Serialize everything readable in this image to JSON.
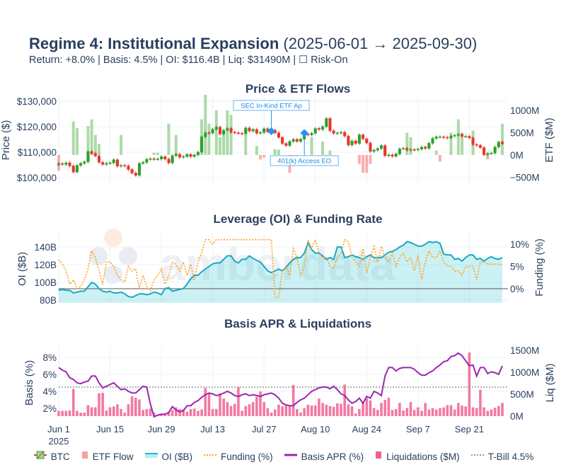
{
  "header": {
    "title_bold": "Regime 4: Institutional Expansion",
    "title_range": "(2025-06-01 → 2025-09-30)",
    "date_start": "2025-06-01",
    "date_end": "2025-09-30",
    "subtitle": "Return: +8.0% | Basis: 4.5% | OI: $116.4B | Liq: $31490M | ☐ Risk-On"
  },
  "watermark": "amberdata",
  "x_axis": {
    "ticks": [
      "Jun 1",
      "Jun 15",
      "Jun 29",
      "Jul 13",
      "Jul 27",
      "Aug 10",
      "Aug 24",
      "Sep 7",
      "Sep 21"
    ],
    "year_label": "2025"
  },
  "legend": [
    {
      "label": "BTC",
      "color": "#2ca02c"
    },
    {
      "label": "ETF Flow",
      "color": "#f8a0a0"
    },
    {
      "label": "OI ($B)",
      "color": "#17becf"
    },
    {
      "label": "Funding (%)",
      "color": "#ff9f1c"
    },
    {
      "label": "Basis APR (%)",
      "color": "#9c27b0"
    },
    {
      "label": "Liquidations ($M)",
      "color": "#f06292"
    },
    {
      "label": "T-Bill 4.5%",
      "color": "#999999"
    }
  ],
  "chart_data": [
    {
      "type": "candlestick+bar",
      "title": "Price & ETF Flows",
      "ylabel": "Price ($)",
      "y2label": "ETF ($M)",
      "yticks": [
        "$100,000",
        "$110,000",
        "$120,000",
        "$130,000"
      ],
      "y2ticks": [
        "−500M",
        "0M",
        "500M",
        "1000M"
      ],
      "ylim": [
        98000,
        132000
      ],
      "y2lim": [
        -650,
        1350
      ],
      "colors": {
        "up": "#2ca02c",
        "down": "#e8372c",
        "etf_pos": "#9fd49a",
        "etf_neg": "#f8a0a0"
      },
      "btc_close_k": [
        105.5,
        105.2,
        105.8,
        104.6,
        102.2,
        104.8,
        105.6,
        106.2,
        110.2,
        109.5,
        108.5,
        106.0,
        105.2,
        105.6,
        105.8,
        107.0,
        104.5,
        104.8,
        104.6,
        103.2,
        101.8,
        100.9,
        105.6,
        106.0,
        107.2,
        107.4,
        107.2,
        107.3,
        108.2,
        107.3,
        105.8,
        108.6,
        109.2,
        108.0,
        108.3,
        109.1,
        108.3,
        108.9,
        110.0,
        116.0,
        117.6,
        117.5,
        119.0,
        119.8,
        117.1,
        118.6,
        119.3,
        117.8,
        117.6,
        117.4,
        117.3,
        119.5,
        118.3,
        118.9,
        117.4,
        117.7,
        119.2,
        118.0,
        118.6,
        117.6,
        115.8,
        113.4,
        112.6,
        114.2,
        115.0,
        114.2,
        115.1,
        117.0,
        116.8,
        117.4,
        119.3,
        118.9,
        120.0,
        123.2,
        118.4,
        117.4,
        117.5,
        117.8,
        116.3,
        112.8,
        114.4,
        113.4,
        116.8,
        115.2,
        113.6,
        110.3,
        110.8,
        111.4,
        112.6,
        108.6,
        108.9,
        108.4,
        109.3,
        111.3,
        111.5,
        110.8,
        111.0,
        110.9,
        111.2,
        112.0,
        111.5,
        113.5,
        115.4,
        116.0,
        116.0,
        115.8,
        115.6,
        116.3,
        116.6,
        117.0,
        116.2,
        116.2,
        115.6,
        113.0,
        112.7,
        111.8,
        109.0,
        109.5,
        109.6,
        112.0,
        114.0,
        113.3
      ],
      "etf_flow_m": [
        -350,
        0,
        0,
        0,
        750,
        600,
        0,
        0,
        650,
        800,
        450,
        250,
        0,
        0,
        0,
        0,
        0,
        450,
        0,
        0,
        0,
        0,
        0,
        0,
        0,
        0,
        50,
        50,
        0,
        0,
        700,
        0,
        450,
        0,
        0,
        0,
        0,
        0,
        0,
        800,
        1350,
        700,
        0,
        1000,
        400,
        500,
        1000,
        900,
        0,
        0,
        0,
        500,
        0,
        0,
        200,
        -100,
        -60,
        0,
        0,
        130,
        120,
        0,
        0,
        -400,
        -250,
        -200,
        0,
        0,
        0,
        400,
        0,
        0,
        300,
        -150,
        100,
        0,
        0,
        0,
        0,
        0,
        0,
        0,
        -200,
        -400,
        -400,
        -200,
        0,
        0,
        0,
        0,
        0,
        0,
        0,
        0,
        0,
        500,
        400,
        0,
        0,
        0,
        0,
        0,
        0,
        100,
        -150,
        0,
        0,
        500,
        0,
        800,
        500,
        0,
        0,
        550,
        0,
        0,
        0,
        -100,
        0,
        0,
        0,
        700
      ],
      "annotations": [
        {
          "text": "SEC In-Kind ETF Ap",
          "date": "2025-07-29",
          "price_k": 118.2,
          "position": "above"
        },
        {
          "text": "401(k) Access EO",
          "date": "2025-08-07",
          "price_k": 117.5,
          "position": "below"
        }
      ]
    },
    {
      "type": "area+line",
      "title": "Leverage (OI) & Funding Rate",
      "ylabel": "OI ($B)",
      "y2label": "Funding (%)",
      "yticks": [
        "80B",
        "100B",
        "120B",
        "140B"
      ],
      "y2ticks": [
        "0%",
        "5%",
        "10%"
      ],
      "ylim": [
        78,
        152
      ],
      "y2lim": [
        -3,
        12
      ],
      "oi_b": [
        91,
        92,
        91,
        91,
        88,
        89,
        90,
        90,
        95,
        100,
        98,
        93,
        90,
        89,
        90,
        88,
        88,
        89,
        87,
        84,
        83,
        85,
        87,
        87,
        86,
        87,
        89,
        88,
        86,
        93,
        94,
        90,
        91,
        92,
        93,
        98,
        104,
        108,
        108,
        112,
        115,
        118,
        121,
        122,
        122,
        126,
        130,
        130,
        124,
        122,
        126,
        126,
        130,
        127,
        125,
        123,
        118,
        113,
        111,
        113,
        115,
        113,
        117,
        122,
        126,
        128,
        128,
        133,
        145,
        137,
        133,
        133,
        130,
        126,
        128,
        126,
        140,
        140,
        128,
        129,
        131,
        129,
        128,
        126,
        129,
        131,
        128,
        128,
        128,
        131,
        134,
        135,
        137,
        140,
        142,
        146,
        145,
        143,
        141,
        141,
        143,
        146,
        145,
        146,
        144,
        132,
        131,
        131,
        126,
        127,
        124,
        128,
        131,
        131,
        126,
        127,
        124,
        127,
        129,
        127,
        126,
        128
      ],
      "funding_pct": [
        6.5,
        5.5,
        4,
        1,
        2,
        0,
        0.5,
        2,
        4.5,
        8.5,
        7,
        4,
        1,
        6,
        6,
        5,
        3,
        2,
        1.5,
        5,
        4,
        4.5,
        0,
        3,
        0.5,
        -0.5,
        2,
        3,
        4.5,
        1,
        3,
        6,
        5.5,
        4,
        6,
        3,
        5.5,
        2,
        6,
        8,
        11,
        11,
        10,
        11,
        11,
        11,
        11,
        11,
        11,
        11,
        11,
        11,
        11,
        11,
        11,
        11,
        11,
        11,
        11,
        -2,
        -2,
        4,
        5,
        3,
        9,
        7,
        3,
        5,
        11,
        9,
        11,
        8,
        7,
        7,
        5,
        4.5,
        7,
        8,
        11,
        10.5,
        7,
        6,
        5,
        9,
        3.5,
        7,
        9.5,
        6,
        9.5,
        7,
        6,
        8,
        5,
        7,
        8,
        6,
        7,
        4,
        7.5,
        2,
        6,
        8.5,
        7,
        7,
        8.5,
        6,
        5,
        5,
        4,
        4,
        3,
        5,
        5,
        5,
        2,
        6,
        6,
        5.5,
        5.5,
        5.5,
        5.5,
        5.3
      ]
    },
    {
      "type": "line+bar",
      "title": "Basis APR & Liquidations",
      "ylabel": "Basis (%)",
      "y2label": "Liq ($M)",
      "yticks": [
        "2%",
        "4%",
        "6%",
        "8%"
      ],
      "y2ticks": [
        "0M",
        "500M",
        "1000M",
        "1500M"
      ],
      "ylim": [
        1.1,
        9.1
      ],
      "y2lim": [
        0,
        1550
      ],
      "tbill_pct": 4.5,
      "basis_pct": [
        6.8,
        6.5,
        6.3,
        5.6,
        5.4,
        5.0,
        4.9,
        5.1,
        5.2,
        5.8,
        5.8,
        5.0,
        4.4,
        4.6,
        4.8,
        5.0,
        4.6,
        4.2,
        4.3,
        4.0,
        3.8,
        3.8,
        4.2,
        4.6,
        4.5,
        2.5,
        1.0,
        1.2,
        1.3,
        1.3,
        1.5,
        2.2,
        1.8,
        1.6,
        1.7,
        2.3,
        2.3,
        2.7,
        2.9,
        3.3,
        3.6,
        3.8,
        3.7,
        3.5,
        3.6,
        3.8,
        4.0,
        3.8,
        3.5,
        3.4,
        3.6,
        3.7,
        3.5,
        3.6,
        3.5,
        3.4,
        3.6,
        3.7,
        3.8,
        3.6,
        3.2,
        2.6,
        2.4,
        2.3,
        2.3,
        2.7,
        3.0,
        3.2,
        3.6,
        4.0,
        4.2,
        4.4,
        4.5,
        4.5,
        4.3,
        4.6,
        4.2,
        3.7,
        3.5,
        3.0,
        2.6,
        2.8,
        3.2,
        2.6,
        3.4,
        3.2,
        4.0,
        3.8,
        3.5,
        5.8,
        6.8,
        6.8,
        6.4,
        6.7,
        6.8,
        6.8,
        6.8,
        6.6,
        6.2,
        5.9,
        5.9,
        6.2,
        6.4,
        6.8,
        7.1,
        7.5,
        7.6,
        8.1,
        8.2,
        8.5,
        8.2,
        7.6,
        7.0,
        7.1,
        5.8,
        6.8,
        6.8,
        6.1,
        6.3,
        6.2,
        6.0,
        7.0
      ],
      "liquidations_m": [
        120,
        120,
        120,
        130,
        620,
        120,
        80,
        80,
        250,
        200,
        200,
        520,
        530,
        130,
        200,
        220,
        270,
        160,
        80,
        270,
        450,
        420,
        380,
        140,
        160,
        170,
        80,
        20,
        40,
        60,
        100,
        140,
        200,
        160,
        160,
        100,
        160,
        170,
        120,
        150,
        640,
        510,
        160,
        160,
        520,
        400,
        320,
        230,
        280,
        660,
        120,
        230,
        270,
        320,
        440,
        560,
        320,
        180,
        80,
        150,
        260,
        220,
        260,
        230,
        710,
        160,
        80,
        180,
        260,
        240,
        240,
        400,
        300,
        260,
        230,
        210,
        290,
        280,
        720,
        270,
        220,
        60,
        160,
        320,
        410,
        360,
        180,
        140,
        300,
        370,
        420,
        140,
        160,
        300,
        130,
        180,
        320,
        140,
        200,
        120,
        300,
        150,
        180,
        150,
        180,
        200,
        250,
        250,
        150,
        300,
        240,
        220,
        1450,
        200,
        180,
        600,
        200,
        120,
        150,
        190,
        230,
        300
      ]
    }
  ]
}
